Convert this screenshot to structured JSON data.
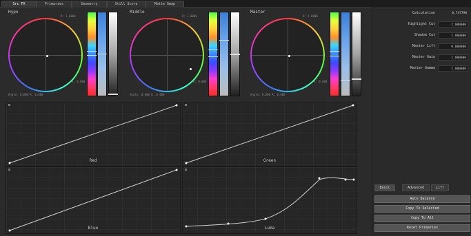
{
  "tabs": [
    "Src FX",
    "Primaries",
    "Geometry",
    "Still Store",
    "Matte Gmap"
  ],
  "active_tab": 0,
  "wheels": [
    {
      "title": "Hypo",
      "note_top": "R: 1.0000",
      "note_right": "A: 0.000",
      "readout": "Angle: 0.000 R: 0.000"
    },
    {
      "title": "Middle",
      "note_top": "R: 1.0000",
      "note_right": "A: 0.000",
      "readout": "Angle: 0.000 R: 0.000"
    },
    {
      "title": "Master",
      "note_top": "R: 1.0000",
      "note_right": "A: 0.000",
      "readout": "Angle: 0.000 R: 0.000"
    }
  ],
  "graphs": [
    {
      "label": "Red"
    },
    {
      "label": "Green"
    },
    {
      "label": "Blue"
    },
    {
      "label": "Luma"
    }
  ],
  "settings": {
    "calculation": {
      "label": "Calculation",
      "value": "0.747790"
    },
    "rows": [
      {
        "label": "Highlight Cut",
        "value": "1.000000"
      },
      {
        "label": "Shadow Cut",
        "value": "1.000000"
      },
      {
        "label": "Master Lift",
        "value": "0.000000"
      },
      {
        "label": "Master Gain",
        "value": "1.000000"
      },
      {
        "label": "Master Gamma",
        "value": "1.000000"
      }
    ]
  },
  "subtabs": [
    "Basic",
    "Advanced",
    "Lift"
  ],
  "buttons": [
    "Auto Balance",
    "Copy To Selected",
    "Copy To All",
    "Reset Primaries"
  ]
}
